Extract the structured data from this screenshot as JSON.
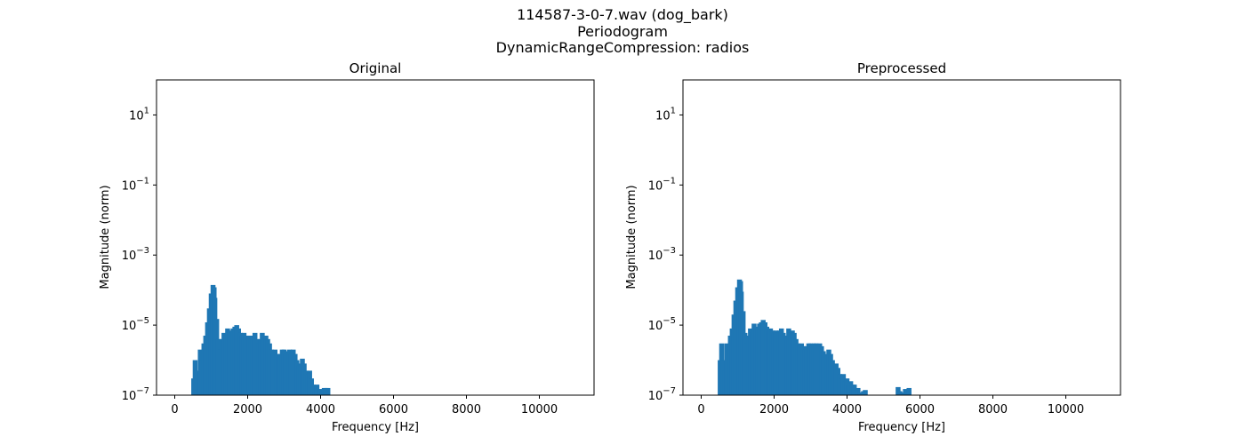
{
  "figure": {
    "title_lines": [
      "114587-3-0-7.wav (dog_bark)",
      "Periodogram",
      "DynamicRangeCompression: radios"
    ]
  },
  "chart_data": [
    {
      "type": "area",
      "title": "Original",
      "xlabel": "Frequency [Hz]",
      "ylabel": "Magnitude (norm)",
      "xlim": [
        -500,
        11500
      ],
      "ylim": [
        1e-07,
        100
      ],
      "yscale": "log",
      "xticks": [
        0,
        2000,
        4000,
        6000,
        8000,
        10000
      ],
      "xtick_labels": [
        "0",
        "2000",
        "4000",
        "6000",
        "8000",
        "10000"
      ],
      "yticks": [
        1e-07,
        1e-05,
        0.001,
        0.1,
        10
      ],
      "ytick_labels": [
        "10",
        "10",
        "10",
        "10",
        "10"
      ],
      "ytick_exponents": [
        "−7",
        "−5",
        "−3",
        "−1",
        "1"
      ],
      "grid": false,
      "color": "#1f77b4",
      "series": [
        {
          "x": [
            460,
            520,
            560,
            600,
            650,
            700,
            750,
            800,
            850,
            900,
            950,
            1000,
            1050,
            1080,
            1100,
            1150,
            1200,
            1250,
            1300,
            1350,
            1400,
            1450,
            1500,
            1550,
            1600,
            1650,
            1700,
            1750,
            1800,
            1850,
            1900,
            1950,
            2000,
            2050,
            2100,
            2150,
            2200,
            2250,
            2300,
            2350,
            2400,
            2450,
            2500,
            2550,
            2600,
            2650,
            2700,
            2750,
            2800,
            2850,
            2900,
            2950,
            3000,
            3050,
            3100,
            3150,
            3200,
            3250,
            3300,
            3350,
            3400,
            3450,
            3500,
            3550,
            3600,
            3650,
            3700,
            3750,
            3800,
            3850,
            3900,
            3950,
            4000,
            4050,
            4100,
            4150,
            4200,
            4250
          ],
          "y": [
            1e-07,
            3e-07,
            1e-06,
            5e-07,
            3e-07,
            2e-06,
            1e-06,
            3e-06,
            5e-06,
            1.2e-05,
            3e-05,
            8e-05,
            0.00014,
            0.00012,
            6e-05,
            1.5e-05,
            4e-06,
            2e-06,
            4e-06,
            6e-06,
            5e-06,
            8e-06,
            7e-06,
            6e-06,
            8e-06,
            9e-06,
            1e-05,
            8e-06,
            6e-06,
            5e-06,
            6e-06,
            5e-06,
            4e-06,
            5e-06,
            4e-06,
            5e-06,
            6e-06,
            4e-06,
            3e-06,
            4e-06,
            6e-06,
            4e-06,
            5e-06,
            4e-06,
            3e-06,
            2e-06,
            1.5e-06,
            2e-06,
            1.5e-06,
            1.2e-06,
            1.5e-06,
            2e-06,
            2e-06,
            1.5e-06,
            1.8e-06,
            2e-06,
            1.5e-06,
            2e-06,
            1.5e-06,
            1e-06,
            7e-07,
            8e-07,
            1.1e-06,
            8e-07,
            5e-07,
            4e-07,
            5e-07,
            3e-07,
            2e-07,
            1.2e-07,
            2e-07,
            1.2e-07,
            1.5e-07,
            1.1e-07,
            1.6e-07,
            1.6e-07,
            1.6e-07,
            1e-07
          ]
        }
      ]
    },
    {
      "type": "area",
      "title": "Preprocessed",
      "xlabel": "Frequency [Hz]",
      "ylabel": "Magnitude (norm)",
      "xlim": [
        -500,
        11500
      ],
      "ylim": [
        1e-07,
        100
      ],
      "yscale": "log",
      "xticks": [
        0,
        2000,
        4000,
        6000,
        8000,
        10000
      ],
      "xtick_labels": [
        "0",
        "2000",
        "4000",
        "6000",
        "8000",
        "10000"
      ],
      "yticks": [
        1e-07,
        1e-05,
        0.001,
        0.1,
        10
      ],
      "ytick_labels": [
        "10",
        "10",
        "10",
        "10",
        "10"
      ],
      "ytick_exponents": [
        "−7",
        "−5",
        "−3",
        "−1",
        "1"
      ],
      "grid": false,
      "color": "#1f77b4",
      "series": [
        {
          "x": [
            460,
            520,
            560,
            600,
            650,
            700,
            750,
            800,
            850,
            900,
            950,
            1000,
            1050,
            1080,
            1100,
            1150,
            1200,
            1250,
            1300,
            1350,
            1400,
            1450,
            1500,
            1550,
            1600,
            1650,
            1700,
            1750,
            1800,
            1850,
            1900,
            1950,
            2000,
            2050,
            2100,
            2150,
            2200,
            2250,
            2300,
            2350,
            2400,
            2450,
            2500,
            2550,
            2600,
            2650,
            2700,
            2750,
            2800,
            2850,
            2900,
            2950,
            3000,
            3050,
            3100,
            3150,
            3200,
            3250,
            3300,
            3350,
            3400,
            3450,
            3500,
            3550,
            3600,
            3650,
            3700,
            3750,
            3800,
            3850,
            3900,
            3950,
            4000,
            4050,
            4100,
            4150,
            4200,
            4250,
            4300,
            4350,
            4400,
            4450,
            4500,
            4550,
            5400,
            5450,
            5500,
            5550,
            5600,
            5650,
            5700,
            5750
          ],
          "y": [
            1e-07,
            1e-06,
            3e-06,
            1e-06,
            5e-07,
            3e-06,
            2e-06,
            5e-06,
            8e-06,
            2e-05,
            5e-05,
            0.00012,
            0.0002,
            0.00018,
            9e-05,
            2.5e-05,
            6e-06,
            3e-06,
            5e-06,
            8e-06,
            6e-06,
            1.1e-05,
            9e-06,
            8e-06,
            1.1e-05,
            1.2e-05,
            1.4e-05,
            1.2e-05,
            9e-06,
            7e-06,
            8e-06,
            7e-06,
            6e-06,
            7e-06,
            6e-06,
            7e-06,
            8e-06,
            6e-06,
            4e-06,
            5e-06,
            8e-06,
            6e-06,
            7e-06,
            6e-06,
            4e-06,
            3e-06,
            2.5e-06,
            3e-06,
            2.5e-06,
            2e-06,
            2.5e-06,
            3e-06,
            3e-06,
            2.5e-06,
            3e-06,
            3e-06,
            2.5e-06,
            3e-06,
            2.5e-06,
            1.8e-06,
            1.2e-06,
            1.5e-06,
            2e-06,
            1.5e-06,
            1e-06,
            7e-07,
            8e-07,
            6e-07,
            4e-07,
            3e-07,
            4e-07,
            2.5e-07,
            3e-07,
            2e-07,
            2.5e-07,
            2e-07,
            2e-07,
            1.2e-07,
            1.6e-07,
            1.2e-07,
            1e-07,
            1.3e-07,
            1.4e-07,
            1e-07,
            1.7e-07,
            1.3e-07,
            1e-07,
            1.2e-07,
            1.5e-07,
            1.1e-07,
            1.6e-07,
            1e-07
          ]
        }
      ]
    }
  ]
}
